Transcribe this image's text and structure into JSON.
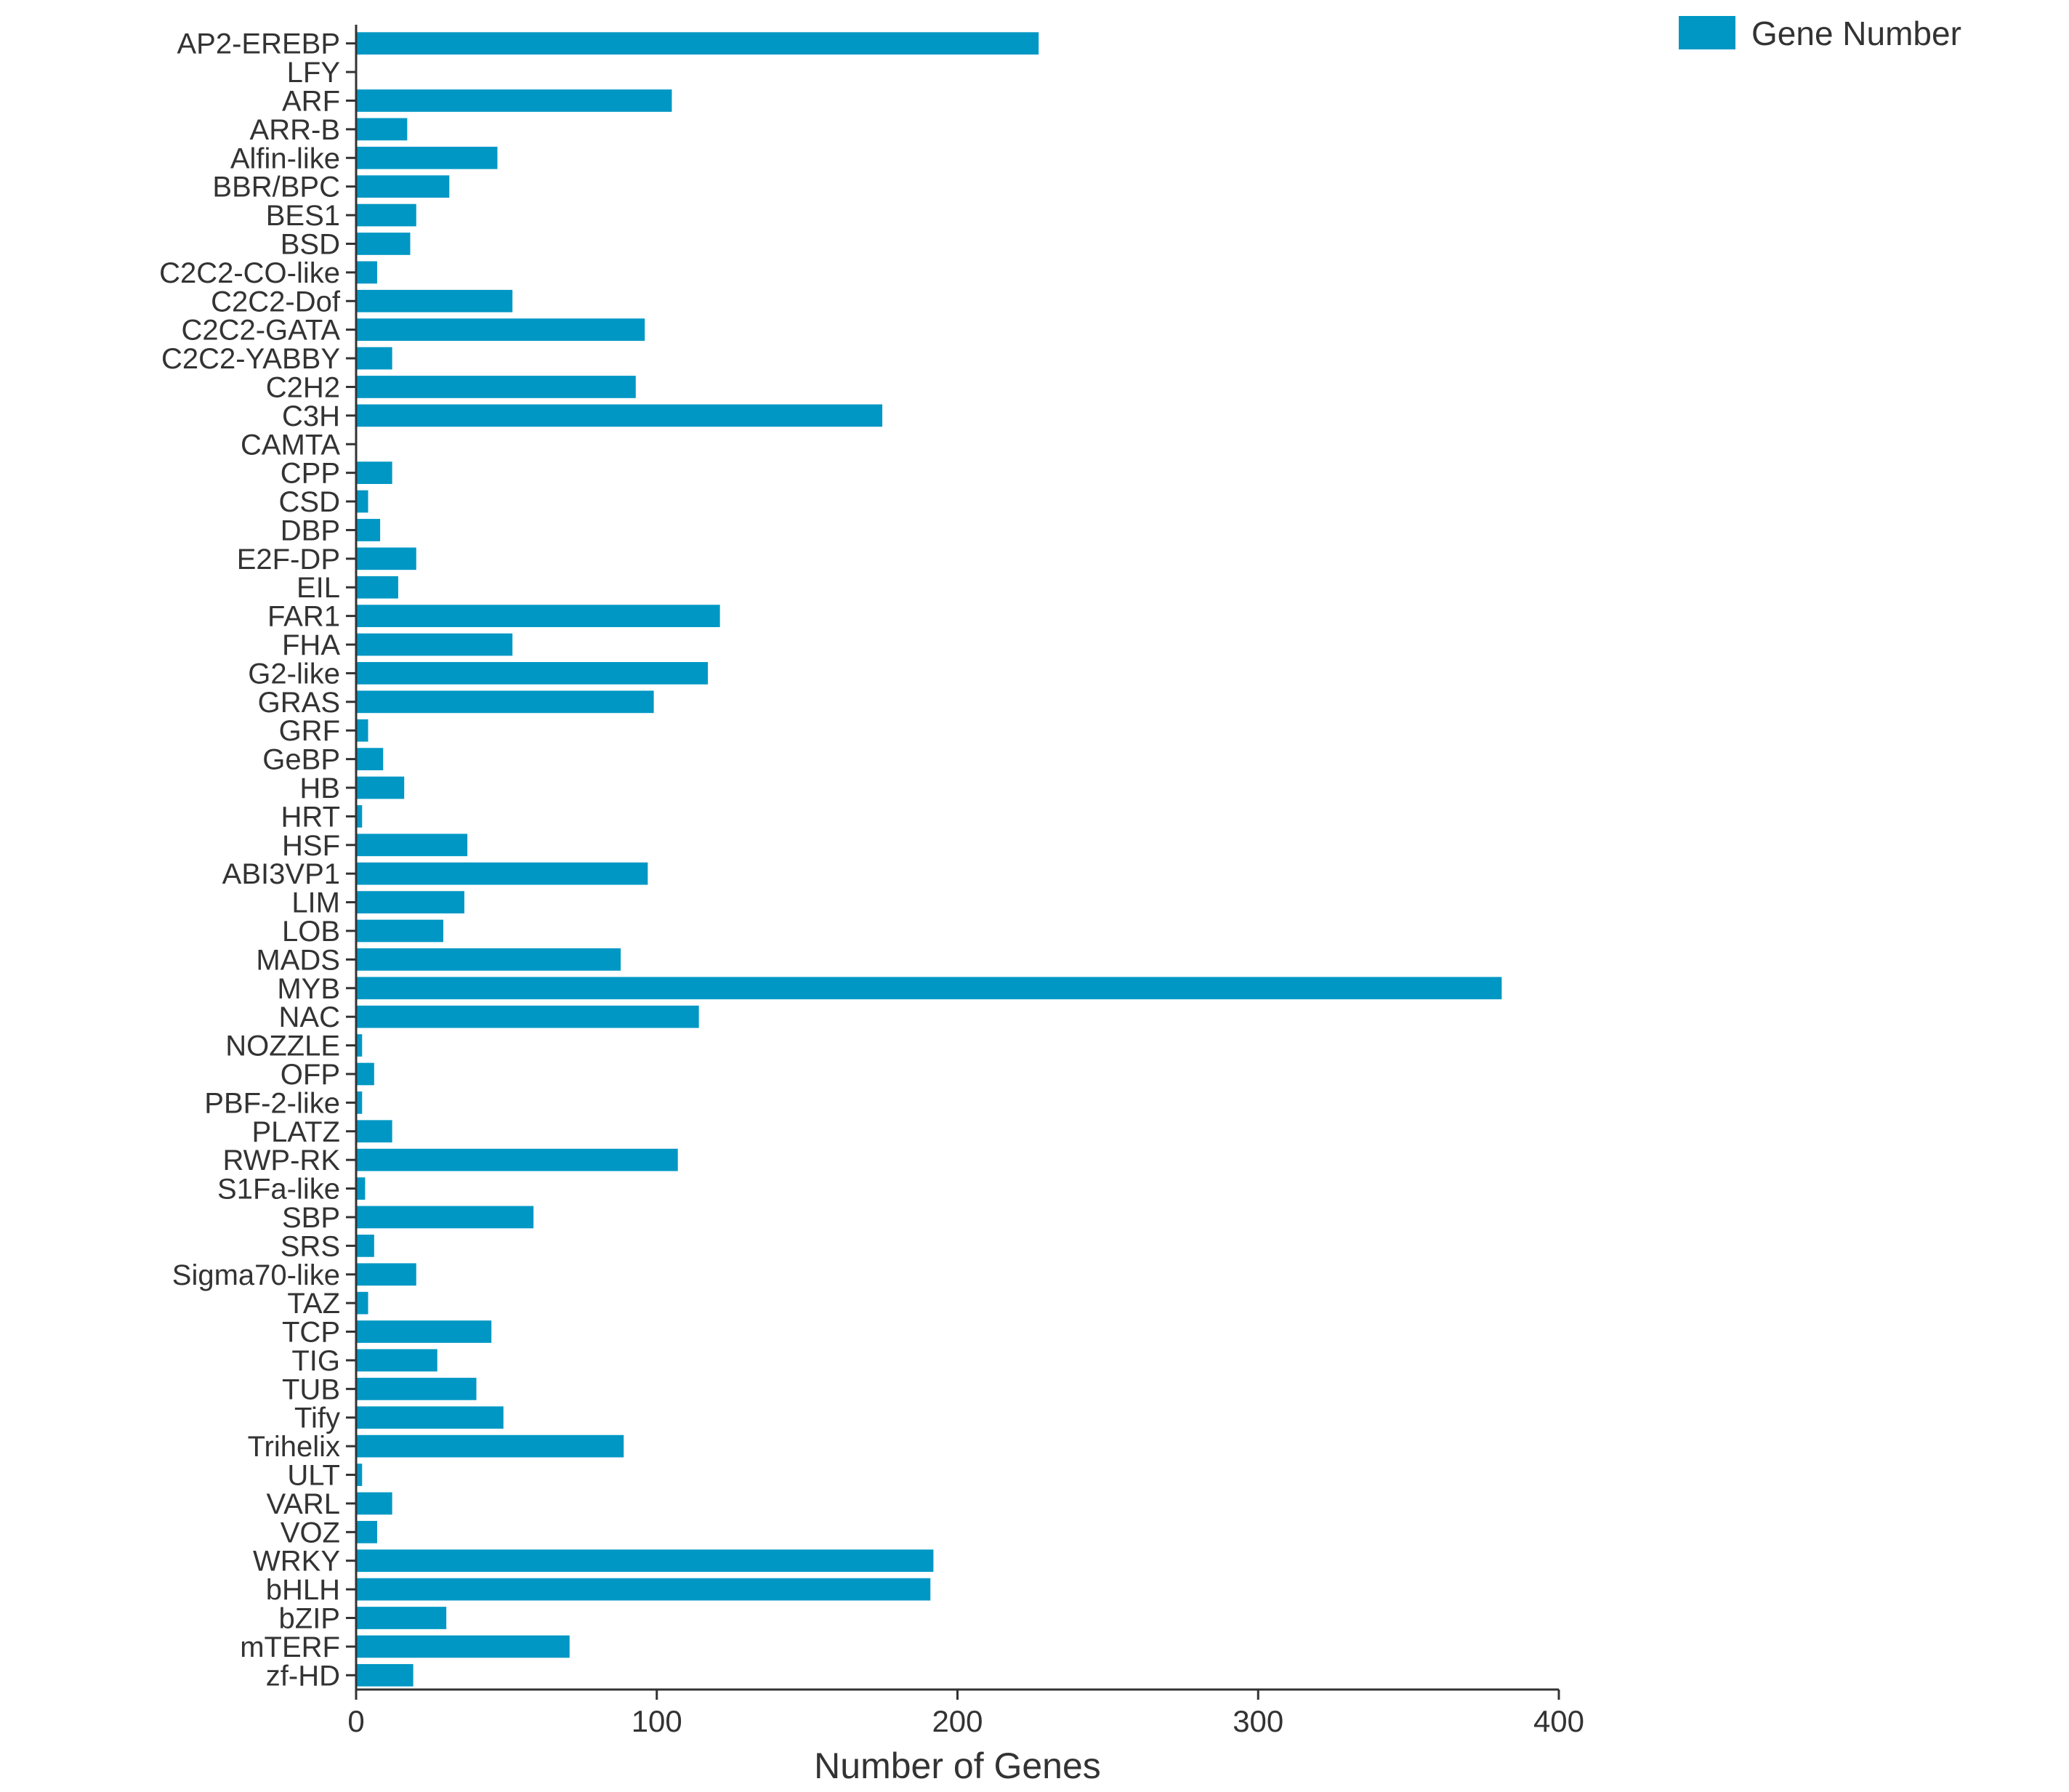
{
  "chart_data": {
    "type": "bar",
    "orientation": "horizontal",
    "categories": [
      "AP2-EREBP",
      "LFY",
      "ARF",
      "ARR-B",
      "Alfin-like",
      "BBR/BPC",
      "BES1",
      "BSD",
      "C2C2-CO-like",
      "C2C2-Dof",
      "C2C2-GATA",
      "C2C2-YABBY",
      "C2H2",
      "C3H",
      "CAMTA",
      "CPP",
      "CSD",
      "DBP",
      "E2F-DP",
      "EIL",
      "FAR1",
      "FHA",
      "G2-like",
      "GRAS",
      "GRF",
      "GeBP",
      "HB",
      "HRT",
      "HSF",
      "ABI3VP1",
      "LIM",
      "LOB",
      "MADS",
      "MYB",
      "NAC",
      "NOZZLE",
      "OFP",
      "PBF-2-like",
      "PLATZ",
      "RWP-RK",
      "S1Fa-like",
      "SBP",
      "SRS",
      "Sigma70-like",
      "TAZ",
      "TCP",
      "TIG",
      "TUB",
      "Tify",
      "Trihelix",
      "ULT",
      "VARL",
      "VOZ",
      "WRKY",
      "bHLH",
      "bZIP",
      "mTERF",
      "zf-HD"
    ],
    "series": [
      {
        "name": "Gene Number",
        "color": "#0097c4",
        "values": [
          227,
          0,
          105,
          17,
          47,
          31,
          20,
          18,
          7,
          52,
          96,
          12,
          93,
          175,
          0,
          12,
          4,
          8,
          20,
          14,
          121,
          52,
          117,
          99,
          4,
          9,
          16,
          2,
          37,
          97,
          36,
          29,
          88,
          381,
          114,
          2,
          6,
          2,
          12,
          107,
          3,
          59,
          6,
          20,
          4,
          45,
          27,
          40,
          49,
          89,
          2,
          12,
          7,
          192,
          191,
          30,
          71,
          19
        ]
      }
    ],
    "xlabel": "Number of Genes",
    "xlim": [
      0,
      400
    ],
    "xticks": [
      0,
      100,
      200,
      300,
      400
    ],
    "grid": false,
    "legend_position": "top-right"
  }
}
